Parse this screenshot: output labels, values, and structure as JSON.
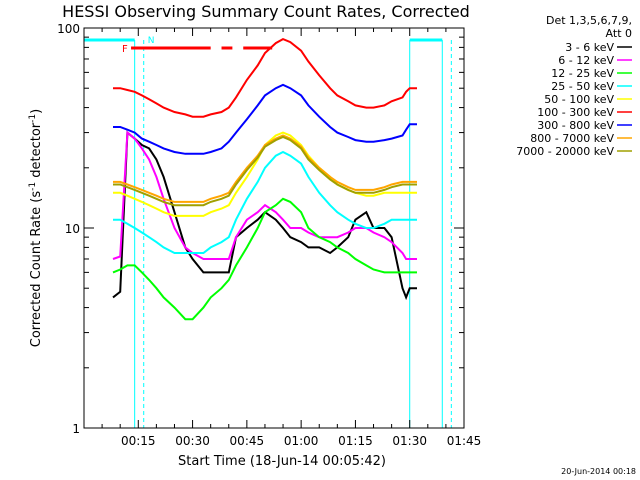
{
  "chart_data": {
    "type": "line",
    "title": "HESSI Observing Summary Count Rates, Corrected",
    "xlabel": "Start Time (18-Jun-14 00:05:42)",
    "ylabel_main": "Corrected Count Rate (s",
    "ylabel_sup1": "-1",
    "ylabel_mid": " detector",
    "ylabel_sup2": "-1",
    "ylabel_end": ")",
    "y_scale": "log",
    "ylim": [
      1,
      100
    ],
    "xlim_minutes": [
      0,
      105
    ],
    "x_ticks": [
      {
        "t": 15,
        "label": "00:15"
      },
      {
        "t": 30,
        "label": "00:30"
      },
      {
        "t": 45,
        "label": "00:45"
      },
      {
        "t": 60,
        "label": "01:00"
      },
      {
        "t": 75,
        "label": "01:15"
      },
      {
        "t": 90,
        "label": "01:30"
      },
      {
        "t": 105,
        "label": "01:45"
      }
    ],
    "y_ticks": [
      {
        "v": 1,
        "label": "1"
      },
      {
        "v": 10,
        "label": "10"
      },
      {
        "v": 100,
        "label": "100"
      }
    ],
    "legend_header": [
      "Det 1,3,5,6,7,9,",
      "Att 0"
    ],
    "legend_placement": "top-right, outside plot",
    "annotations": {
      "flags": [
        "F",
        "N"
      ],
      "flag_color_F": "#ff0000",
      "flag_color_N": "#00ffff"
    },
    "saa_segments_minutes": [
      [
        0,
        14
      ],
      [
        90,
        99
      ]
    ],
    "night_markers_minutes": [
      16.5,
      101.5
    ],
    "flare_flag_segments_minutes": [
      [
        13,
        35
      ],
      [
        38,
        41
      ],
      [
        44,
        52
      ]
    ],
    "series": [
      {
        "name": "3 - 6 keV",
        "color": "#000000",
        "x": [
          8,
          10,
          12,
          14,
          16,
          18,
          20,
          22,
          25,
          28,
          30,
          33,
          35,
          38,
          40,
          42,
          45,
          48,
          50,
          53,
          55,
          57,
          60,
          62,
          65,
          68,
          70,
          73,
          75,
          78,
          80,
          83,
          85,
          88,
          89,
          90,
          92
        ],
        "y": [
          4.5,
          4.8,
          30,
          28,
          26,
          25,
          22,
          18,
          12,
          8,
          7,
          6,
          6,
          6,
          6,
          9,
          10,
          11,
          12,
          11,
          10,
          9,
          8.5,
          8,
          8,
          7.5,
          8,
          9,
          11,
          12,
          10,
          10,
          9,
          5,
          4.5,
          5,
          5
        ]
      },
      {
        "name": "6 - 12 keV",
        "color": "#ff00ff",
        "x": [
          8,
          10,
          12,
          14,
          16,
          18,
          20,
          22,
          25,
          28,
          30,
          33,
          35,
          38,
          40,
          42,
          45,
          48,
          50,
          53,
          55,
          57,
          60,
          62,
          65,
          68,
          70,
          73,
          75,
          78,
          80,
          83,
          85,
          88,
          89,
          90,
          92
        ],
        "y": [
          7,
          7.2,
          30,
          28,
          25,
          22,
          18,
          14,
          10,
          8,
          7.5,
          7,
          7,
          7,
          7,
          9,
          11,
          12,
          13,
          12,
          11,
          10,
          10,
          9.5,
          9,
          9,
          9,
          9.5,
          10,
          10,
          9.5,
          9,
          8.5,
          7.5,
          7,
          7,
          7
        ]
      },
      {
        "name": "12 - 25 keV",
        "color": "#00ff00",
        "x": [
          8,
          10,
          12,
          14,
          16,
          18,
          20,
          22,
          25,
          28,
          30,
          33,
          35,
          38,
          40,
          42,
          45,
          48,
          50,
          53,
          55,
          57,
          60,
          62,
          65,
          68,
          70,
          73,
          75,
          78,
          80,
          83,
          85,
          88,
          89,
          90,
          92
        ],
        "y": [
          6,
          6.2,
          6.5,
          6.5,
          6,
          5.5,
          5,
          4.5,
          4,
          3.5,
          3.5,
          4,
          4.5,
          5,
          5.5,
          6.5,
          8,
          10,
          12,
          13,
          14,
          13.5,
          12,
          10,
          9,
          8.5,
          8,
          7.5,
          7,
          6.5,
          6.2,
          6,
          6,
          6,
          6,
          6,
          6
        ]
      },
      {
        "name": "25 - 50 keV",
        "color": "#00ffff",
        "x": [
          8,
          10,
          12,
          14,
          16,
          18,
          20,
          22,
          25,
          28,
          30,
          33,
          35,
          38,
          40,
          42,
          45,
          48,
          50,
          53,
          55,
          57,
          60,
          62,
          65,
          68,
          70,
          73,
          75,
          78,
          80,
          83,
          85,
          88,
          89,
          90,
          92
        ],
        "y": [
          11,
          11,
          10.5,
          10,
          9.5,
          9,
          8.5,
          8,
          7.5,
          7.5,
          7.5,
          7.5,
          8,
          8.5,
          9,
          11,
          14,
          17,
          20,
          23,
          24,
          23,
          21,
          18,
          15,
          13,
          12,
          11,
          10.5,
          10,
          10,
          10.5,
          11,
          11,
          11,
          11,
          11
        ]
      },
      {
        "name": "50 - 100 keV",
        "color": "#ffff00",
        "x": [
          8,
          10,
          12,
          14,
          16,
          18,
          20,
          22,
          25,
          28,
          30,
          33,
          35,
          38,
          40,
          42,
          45,
          48,
          50,
          53,
          55,
          57,
          60,
          62,
          65,
          68,
          70,
          73,
          75,
          78,
          80,
          83,
          85,
          88,
          89,
          90,
          92
        ],
        "y": [
          15,
          15,
          14.5,
          14,
          13.5,
          13,
          12.5,
          12,
          11.5,
          11.5,
          11.5,
          11.5,
          12,
          12.5,
          13,
          15,
          18,
          22,
          26,
          29,
          30,
          29,
          26,
          23,
          20,
          18,
          16.5,
          15.5,
          15,
          14.5,
          14.5,
          15,
          15,
          15,
          15,
          15,
          15
        ]
      },
      {
        "name": "100 - 300 keV",
        "color": "#ff0000",
        "x": [
          8,
          10,
          12,
          14,
          16,
          18,
          20,
          22,
          25,
          28,
          30,
          33,
          35,
          38,
          40,
          42,
          45,
          48,
          50,
          53,
          55,
          57,
          60,
          62,
          65,
          68,
          70,
          73,
          75,
          78,
          80,
          83,
          85,
          88,
          89,
          90,
          92
        ],
        "y": [
          50,
          50,
          49,
          48,
          46,
          44,
          42,
          40,
          38,
          37,
          36,
          36,
          37,
          38,
          40,
          45,
          55,
          65,
          75,
          84,
          88,
          85,
          77,
          68,
          58,
          50,
          46,
          43,
          41,
          40,
          40,
          41,
          43,
          45,
          48,
          50,
          50
        ]
      },
      {
        "name": "300 - 800 keV",
        "color": "#0000ff",
        "x": [
          8,
          10,
          12,
          14,
          16,
          18,
          20,
          22,
          25,
          28,
          30,
          33,
          35,
          38,
          40,
          42,
          45,
          48,
          50,
          53,
          55,
          57,
          60,
          62,
          65,
          68,
          70,
          73,
          75,
          78,
          80,
          83,
          85,
          88,
          89,
          90,
          92
        ],
        "y": [
          32,
          32,
          31,
          30,
          28,
          27,
          26,
          25,
          24,
          23.5,
          23.5,
          23.5,
          24,
          25,
          27,
          30,
          35,
          41,
          46,
          50,
          52,
          50,
          46,
          41,
          36,
          32,
          30,
          28.5,
          27.5,
          27,
          27,
          27.5,
          28,
          29,
          31,
          33,
          33
        ]
      },
      {
        "name": "800 - 7000 keV",
        "color": "#ffa500",
        "x": [
          8,
          10,
          12,
          14,
          16,
          18,
          20,
          22,
          25,
          28,
          30,
          33,
          35,
          38,
          40,
          42,
          45,
          48,
          50,
          53,
          55,
          57,
          60,
          62,
          65,
          68,
          70,
          73,
          75,
          78,
          80,
          83,
          85,
          88,
          89,
          90,
          92
        ],
        "y": [
          17,
          17,
          16.5,
          16,
          15.5,
          15,
          14.5,
          14,
          13.5,
          13.5,
          13.5,
          13.5,
          14,
          14.5,
          15,
          17,
          20,
          23,
          26,
          28,
          29,
          28,
          25.5,
          22.5,
          20,
          18,
          17,
          16,
          15.5,
          15.5,
          15.5,
          16,
          16.5,
          17,
          17,
          17,
          17
        ]
      },
      {
        "name": "7000 - 20000 keV",
        "color": "#a0a000",
        "x": [
          8,
          10,
          12,
          14,
          16,
          18,
          20,
          22,
          25,
          28,
          30,
          33,
          35,
          38,
          40,
          42,
          45,
          48,
          50,
          53,
          55,
          57,
          60,
          62,
          65,
          68,
          70,
          73,
          75,
          78,
          80,
          83,
          85,
          88,
          89,
          90,
          92
        ],
        "y": [
          16.5,
          16.5,
          16,
          15.5,
          15,
          14.5,
          14,
          13.5,
          13,
          13,
          13,
          13,
          13.5,
          14,
          14.5,
          16.5,
          19.5,
          22.5,
          25.5,
          27.5,
          28.5,
          27.5,
          25,
          22,
          19.5,
          17.5,
          16.5,
          15.5,
          15,
          15,
          15,
          15.5,
          16,
          16.5,
          16.5,
          16.5,
          16.5
        ]
      }
    ],
    "footer_stamp": "20-Jun-2014 00:18"
  }
}
